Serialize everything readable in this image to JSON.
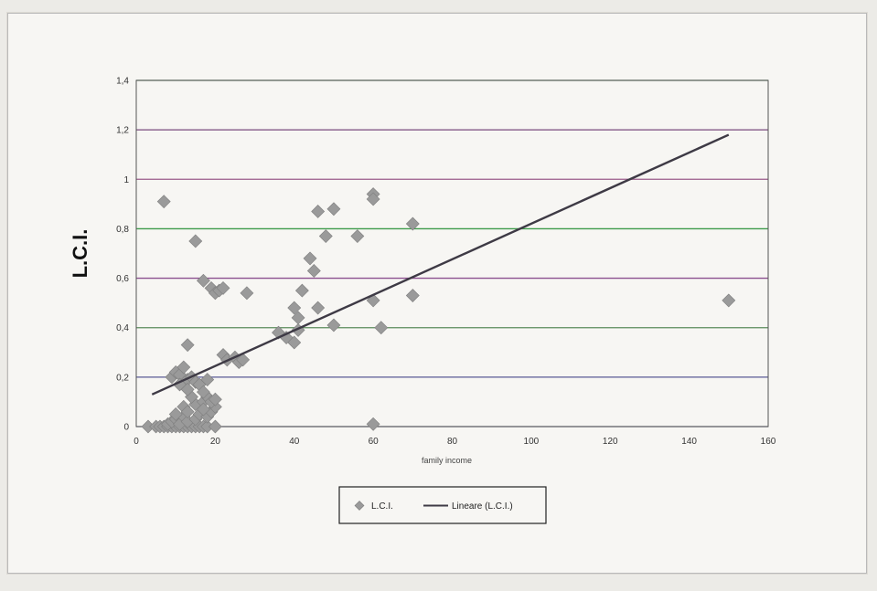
{
  "chart_data": {
    "type": "scatter",
    "xlabel": "family income",
    "ylabel": "L.C.I.",
    "xlim": [
      0,
      160
    ],
    "ylim": [
      0,
      1.4
    ],
    "x_ticks": [
      "0",
      "20",
      "40",
      "60",
      "80",
      "100",
      "120",
      "140",
      "160"
    ],
    "y_ticks": [
      "0",
      "0,2",
      "0,4",
      "0,6",
      "0,8",
      "1",
      "1,2",
      "1,4"
    ],
    "grid": "horizontal",
    "legend_position": "bottom",
    "series": [
      {
        "name": "L.C.I.",
        "kind": "scatter",
        "marker": "diamond",
        "color": "#9a9a9a",
        "points": [
          [
            3,
            0
          ],
          [
            5,
            0
          ],
          [
            6,
            0
          ],
          [
            7,
            0
          ],
          [
            8,
            0
          ],
          [
            9,
            0
          ],
          [
            10,
            0
          ],
          [
            11,
            0
          ],
          [
            12,
            0
          ],
          [
            13,
            0
          ],
          [
            14,
            0
          ],
          [
            15,
            0
          ],
          [
            16,
            0
          ],
          [
            17,
            0
          ],
          [
            18,
            0
          ],
          [
            20,
            0
          ],
          [
            8,
            0.01
          ],
          [
            9,
            0.02
          ],
          [
            10,
            0.03
          ],
          [
            11,
            0.01
          ],
          [
            12,
            0.04
          ],
          [
            13,
            0.02
          ],
          [
            15,
            0.03
          ],
          [
            16,
            0.05
          ],
          [
            18,
            0.04
          ],
          [
            19,
            0.06
          ],
          [
            20,
            0.08
          ],
          [
            10,
            0.05
          ],
          [
            12,
            0.08
          ],
          [
            13,
            0.06
          ],
          [
            15,
            0.09
          ],
          [
            17,
            0.1
          ],
          [
            18,
            0.12
          ],
          [
            19,
            0.1
          ],
          [
            20,
            0.11
          ],
          [
            17,
            0.07
          ],
          [
            14,
            0.12
          ],
          [
            9,
            0.2
          ],
          [
            10,
            0.22
          ],
          [
            11,
            0.21
          ],
          [
            12,
            0.24
          ],
          [
            13,
            0.19
          ],
          [
            14,
            0.2
          ],
          [
            15,
            0.18
          ],
          [
            16,
            0.17
          ],
          [
            17,
            0.14
          ],
          [
            18,
            0.19
          ],
          [
            11,
            0.17
          ],
          [
            13,
            0.15
          ],
          [
            13,
            0.33
          ],
          [
            22,
            0.29
          ],
          [
            23,
            0.27
          ],
          [
            25,
            0.28
          ],
          [
            26,
            0.26
          ],
          [
            27,
            0.27
          ],
          [
            7,
            0.91
          ],
          [
            15,
            0.75
          ],
          [
            17,
            0.59
          ],
          [
            19,
            0.56
          ],
          [
            20,
            0.54
          ],
          [
            21,
            0.55
          ],
          [
            22,
            0.56
          ],
          [
            28,
            0.54
          ],
          [
            36,
            0.38
          ],
          [
            38,
            0.36
          ],
          [
            40,
            0.34
          ],
          [
            40,
            0.48
          ],
          [
            41,
            0.44
          ],
          [
            41,
            0.39
          ],
          [
            42,
            0.55
          ],
          [
            44,
            0.68
          ],
          [
            45,
            0.63
          ],
          [
            46,
            0.87
          ],
          [
            46,
            0.48
          ],
          [
            48,
            0.77
          ],
          [
            50,
            0.88
          ],
          [
            50,
            0.41
          ],
          [
            56,
            0.77
          ],
          [
            60,
            0.94
          ],
          [
            60,
            0.92
          ],
          [
            60,
            0.51
          ],
          [
            62,
            0.4
          ],
          [
            60,
            0.01
          ],
          [
            70,
            0.82
          ],
          [
            70,
            0.53
          ],
          [
            150,
            0.51
          ]
        ]
      },
      {
        "name": "Lineare (L.C.I.)",
        "kind": "line",
        "color": "#3e3a45",
        "points": [
          [
            4,
            0.13
          ],
          [
            150,
            1.18
          ]
        ]
      }
    ]
  }
}
